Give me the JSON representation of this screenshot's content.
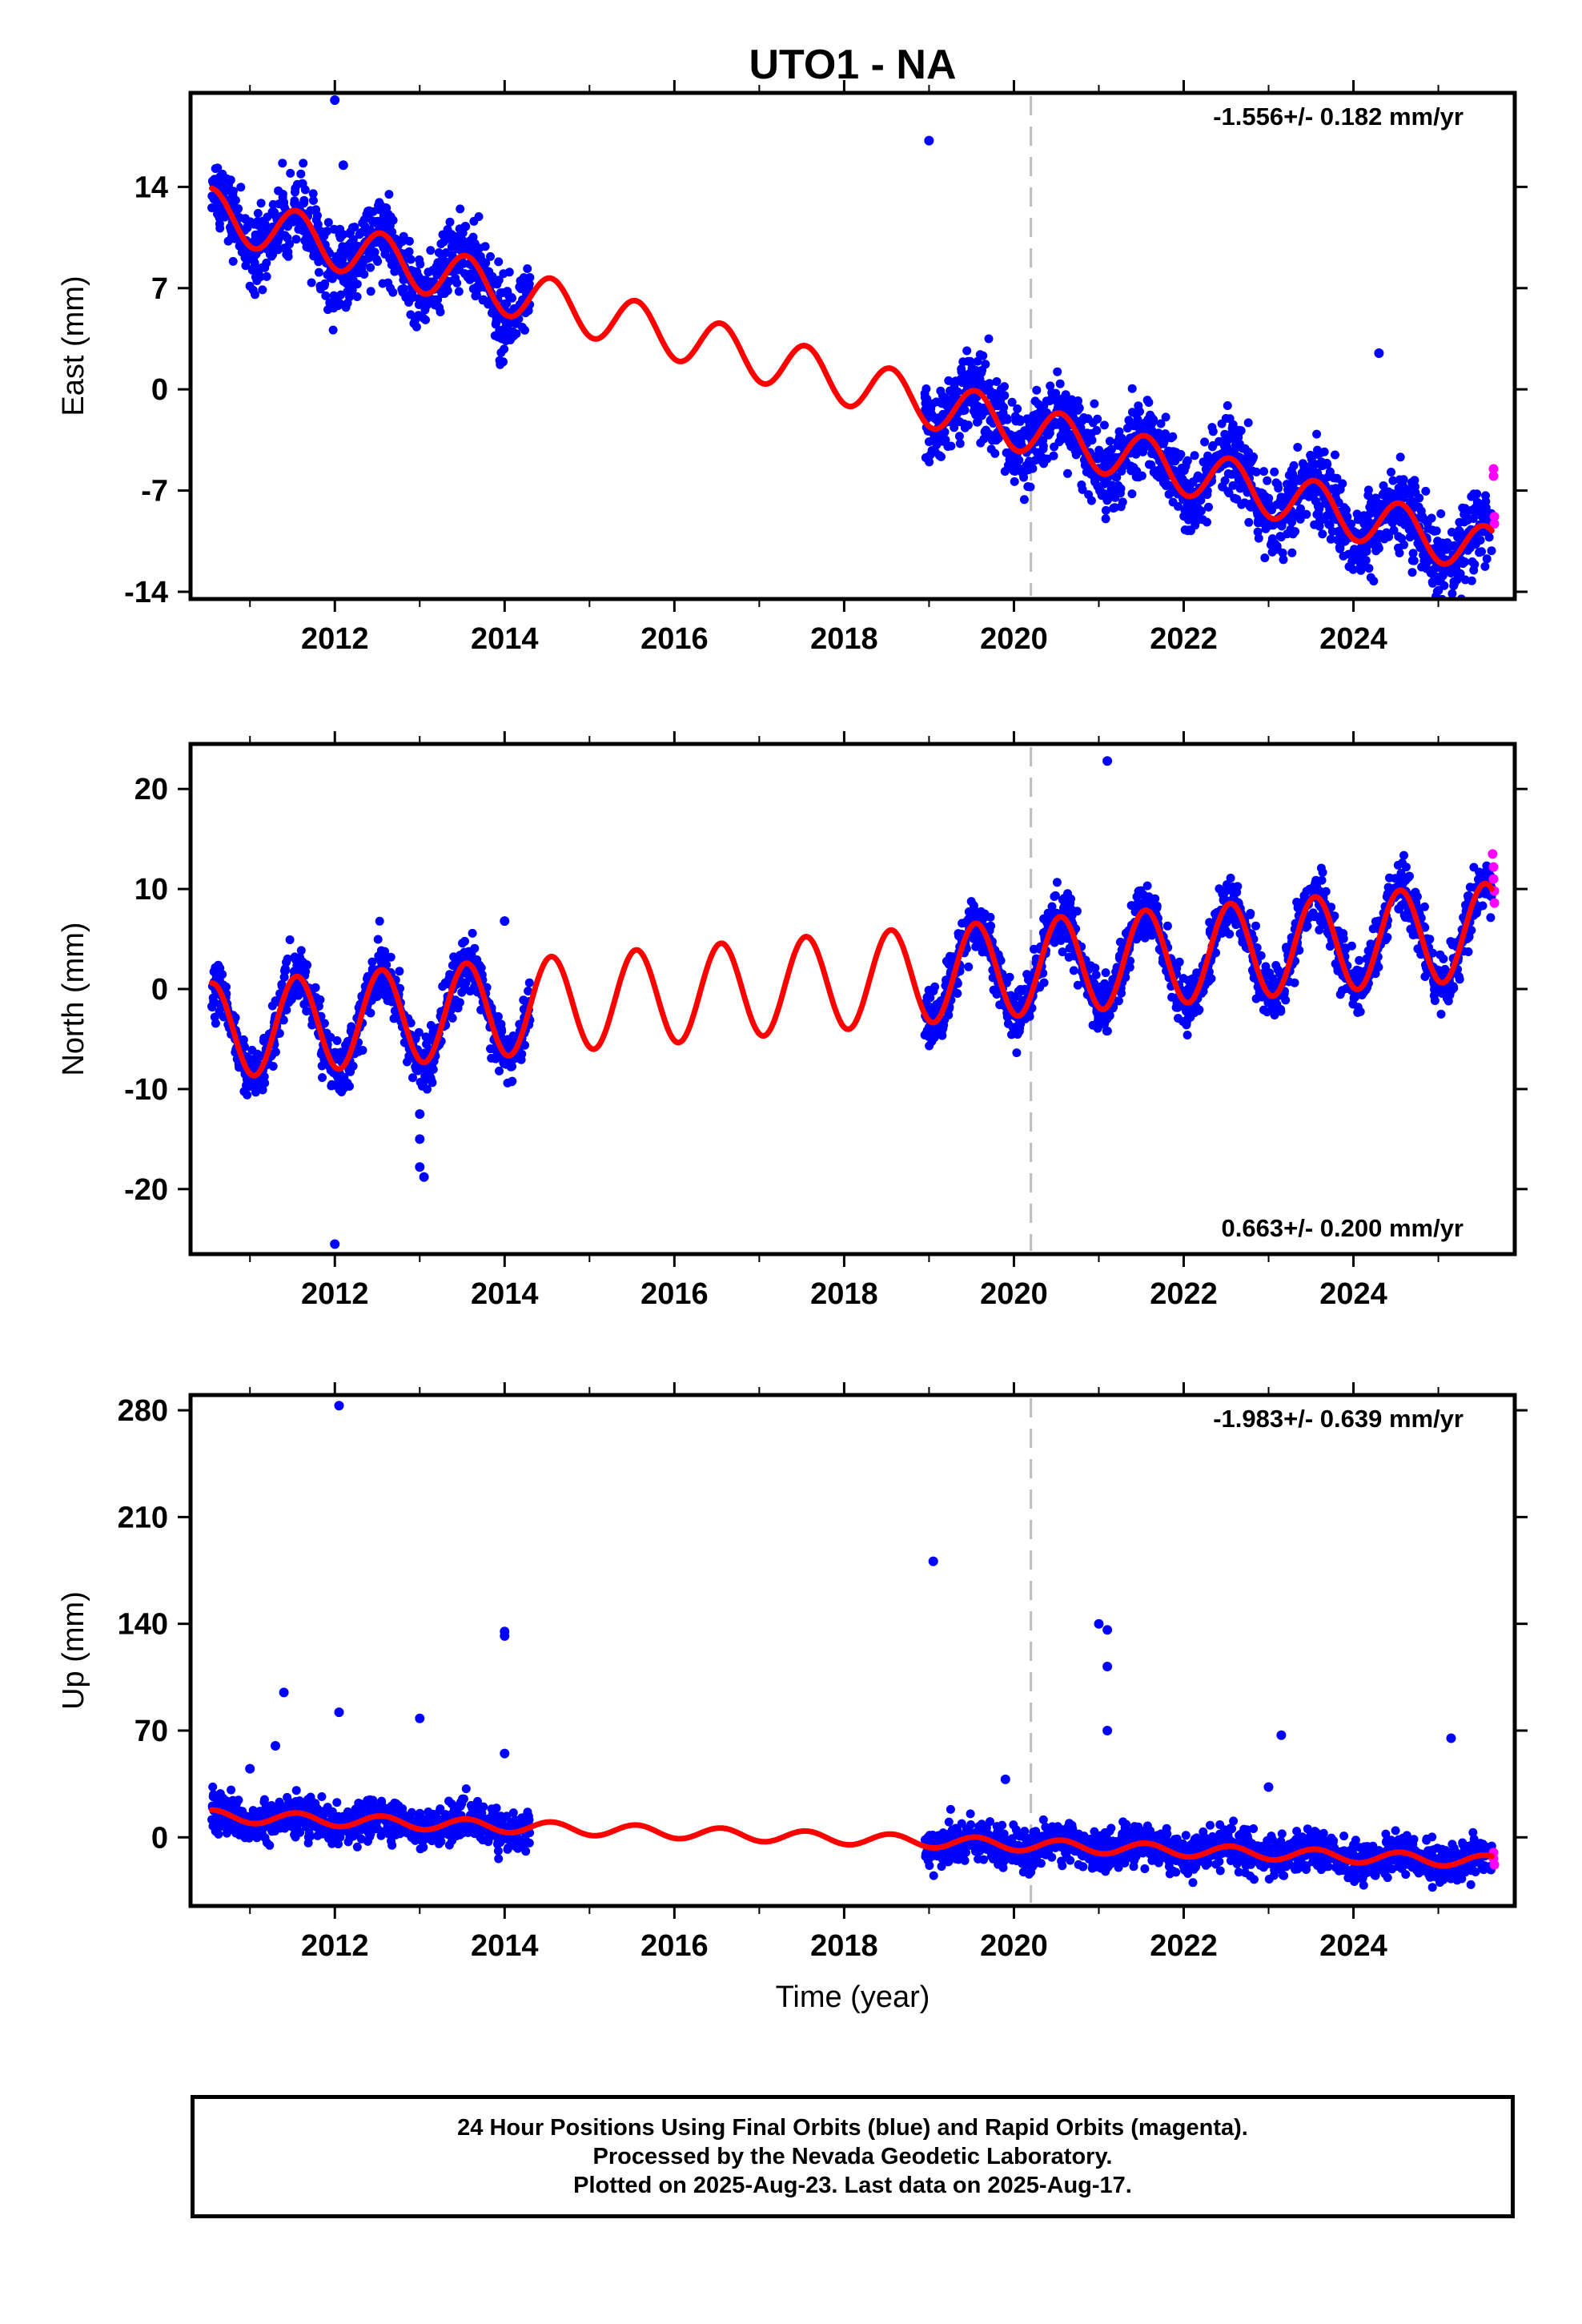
{
  "colors": {
    "final_orbits": "#0000ff",
    "rapid_orbits": "#ff00ff",
    "model": "#ff0000",
    "event_line": "#bdbdbd",
    "frame": "#000000"
  },
  "chart_data": {
    "type": "scatter",
    "title": "UTO1 - NA",
    "xlabel": "Time (year)",
    "x_ticks": [
      "2012",
      "2014",
      "2016",
      "2018",
      "2020",
      "2022",
      "2024"
    ],
    "xlim": [
      2010.3,
      2025.9
    ],
    "event_year": 2020.2,
    "data_coverage": [
      [
        2010.55,
        2014.3
      ],
      [
        2018.95,
        2025.63
      ]
    ],
    "panels": [
      {
        "ylabel": "East (mm)",
        "ylim": [
          -14.5,
          20.5
        ],
        "yticks": [
          "14",
          "7",
          "0",
          "-7",
          "-14"
        ],
        "ytick_values": [
          14,
          7,
          0,
          -7,
          -14
        ],
        "rate": "-1.556+/- 0.182 mm/yr",
        "rate_position": "top-right",
        "trend_start": 12.2,
        "slope_mm_per_yr": -1.556,
        "seasonal_amplitude": 1.7,
        "scatter_sd": 1.3,
        "outliers": [
          [
            2012.0,
            20.0
          ],
          [
            2019.0,
            17.2
          ],
          [
            2012.1,
            15.5
          ],
          [
            2024.3,
            2.5
          ]
        ],
        "rapid_points": [
          [
            2025.65,
            -5.5
          ],
          [
            2025.65,
            -6.0
          ],
          [
            2025.66,
            -8.8
          ],
          [
            2025.66,
            -9.3
          ]
        ]
      },
      {
        "ylabel": "North (mm)",
        "ylim": [
          -26.5,
          24.5
        ],
        "yticks": [
          "20",
          "10",
          "0",
          "-10",
          "-20"
        ],
        "ytick_values": [
          20,
          10,
          0,
          -10,
          -20
        ],
        "rate": "0.663+/- 0.200 mm/yr",
        "rate_position": "bottom-right",
        "trend_start": -4.2,
        "slope_mm_per_yr": 0.663,
        "seasonal_amplitude": 4.8,
        "scatter_sd": 1.3,
        "outliers": [
          [
            2012.0,
            -25.5
          ],
          [
            2021.1,
            22.8
          ],
          [
            2013.0,
            -17.8
          ],
          [
            2013.05,
            -18.8
          ],
          [
            2014.0,
            6.8
          ],
          [
            2013.0,
            -12.5
          ],
          [
            2013.0,
            -15.0
          ]
        ],
        "rapid_points": [
          [
            2025.64,
            13.5
          ],
          [
            2025.65,
            12.2
          ],
          [
            2025.65,
            11.0
          ],
          [
            2025.66,
            9.8
          ],
          [
            2025.66,
            8.6
          ]
        ]
      },
      {
        "ylabel": "Up (mm)",
        "ylim": [
          -45,
          290
        ],
        "yticks": [
          "280",
          "210",
          "140",
          "70",
          "0"
        ],
        "ytick_values": [
          280,
          210,
          140,
          70,
          0
        ],
        "rate": "-1.983+/- 0.639 mm/yr",
        "rate_position": "top-right",
        "trend_start": 14.0,
        "slope_mm_per_yr": -1.983,
        "seasonal_amplitude": 4.0,
        "scatter_sd": 6.0,
        "outliers": [
          [
            2012.05,
            283.0
          ],
          [
            2019.05,
            181.0
          ],
          [
            2021.0,
            140.0
          ],
          [
            2021.1,
            136.0
          ],
          [
            2014.0,
            135.0
          ],
          [
            2014.0,
            132.0
          ],
          [
            2021.1,
            112.0
          ],
          [
            2011.4,
            95.0
          ],
          [
            2012.05,
            82.0
          ],
          [
            2013.0,
            78.0
          ],
          [
            2021.1,
            70.0
          ],
          [
            2023.15,
            67.0
          ],
          [
            2025.15,
            65.0
          ],
          [
            2011.3,
            60.0
          ],
          [
            2011.0,
            45.0
          ],
          [
            2014.0,
            55.0
          ],
          [
            2023.0,
            33.0
          ],
          [
            2019.9,
            38.0
          ]
        ],
        "rapid_points": [
          [
            2025.65,
            -10.0
          ],
          [
            2025.65,
            -14.0
          ],
          [
            2025.66,
            -18.0
          ]
        ]
      }
    ]
  },
  "footer": {
    "line1": "24 Hour Positions Using Final Orbits (blue) and Rapid Orbits (magenta).",
    "line2": "Processed by the Nevada Geodetic Laboratory.",
    "line3": "Plotted on 2025-Aug-23. Last data on 2025-Aug-17."
  }
}
